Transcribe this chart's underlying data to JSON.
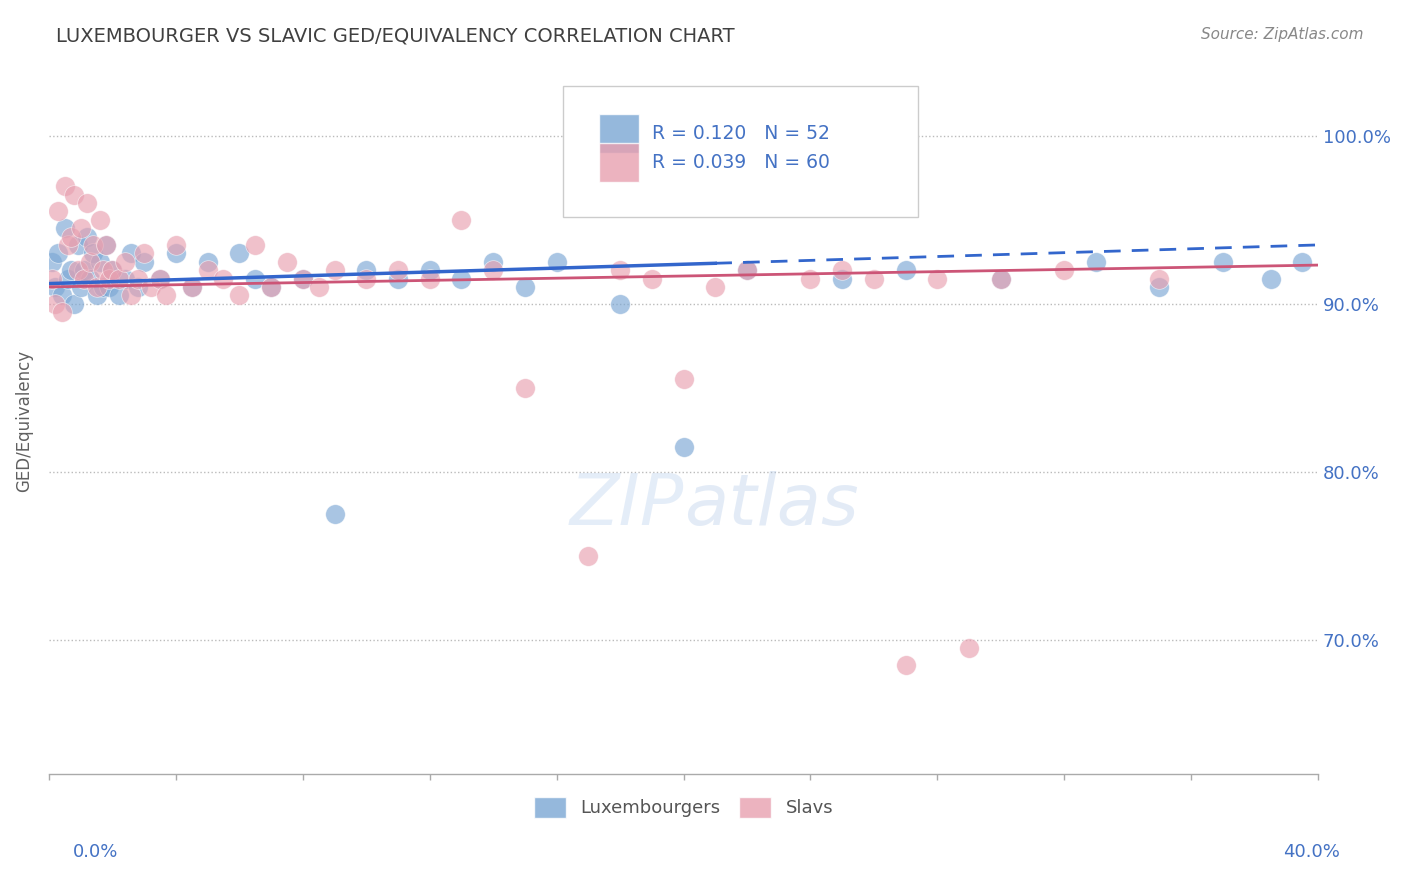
{
  "title": "LUXEMBOURGER VS SLAVIC GED/EQUIVALENCY CORRELATION CHART",
  "source": "Source: ZipAtlas.com",
  "ylabel": "GED/Equivalency",
  "xlim": [
    0.0,
    40.0
  ],
  "ylim": [
    62.0,
    104.0
  ],
  "y_ticks": [
    70.0,
    80.0,
    90.0,
    100.0
  ],
  "x_ticks": [
    0.0,
    4.0,
    8.0,
    12.0,
    16.0,
    20.0,
    24.0,
    28.0,
    32.0,
    36.0,
    40.0
  ],
  "blue_color": "#7BA7D4",
  "pink_color": "#E8A0B0",
  "blue_line_color": "#3366CC",
  "pink_line_color": "#CC5577",
  "R_blue": 0.12,
  "N_blue": 52,
  "R_pink": 0.039,
  "N_pink": 60,
  "blue_solid_end": 21.0,
  "background_color": "#ffffff",
  "grid_color": "#bbbbbb",
  "tick_label_color": "#4472c4",
  "title_color": "#404040",
  "source_color": "#888888",
  "blue_points_x": [
    0.1,
    0.2,
    0.3,
    0.4,
    0.5,
    0.6,
    0.7,
    0.8,
    0.9,
    1.0,
    1.1,
    1.2,
    1.3,
    1.4,
    1.5,
    1.6,
    1.7,
    1.8,
    1.9,
    2.0,
    2.2,
    2.4,
    2.6,
    2.8,
    3.0,
    3.5,
    4.0,
    4.5,
    5.0,
    6.0,
    6.5,
    7.0,
    8.0,
    9.0,
    10.0,
    11.0,
    12.0,
    13.0,
    14.0,
    15.0,
    16.0,
    18.0,
    20.0,
    22.0,
    25.0,
    27.0,
    30.0,
    33.0,
    35.0,
    37.0,
    38.5,
    39.5
  ],
  "blue_points_y": [
    92.5,
    91.0,
    93.0,
    90.5,
    94.5,
    91.5,
    92.0,
    90.0,
    93.5,
    91.0,
    92.0,
    94.0,
    91.5,
    93.0,
    90.5,
    92.5,
    91.0,
    93.5,
    91.0,
    92.0,
    90.5,
    91.5,
    93.0,
    91.0,
    92.5,
    91.5,
    93.0,
    91.0,
    92.5,
    93.0,
    91.5,
    91.0,
    91.5,
    77.5,
    92.0,
    91.5,
    92.0,
    91.5,
    92.5,
    91.0,
    92.5,
    90.0,
    81.5,
    92.0,
    91.5,
    92.0,
    91.5,
    92.5,
    91.0,
    92.5,
    91.5,
    92.5
  ],
  "pink_points_x": [
    0.1,
    0.2,
    0.3,
    0.4,
    0.5,
    0.6,
    0.7,
    0.8,
    0.9,
    1.0,
    1.1,
    1.2,
    1.3,
    1.4,
    1.5,
    1.6,
    1.7,
    1.8,
    1.9,
    2.0,
    2.2,
    2.4,
    2.6,
    2.8,
    3.0,
    3.2,
    3.5,
    3.7,
    4.0,
    4.5,
    5.0,
    5.5,
    6.0,
    6.5,
    7.0,
    7.5,
    8.0,
    8.5,
    9.0,
    10.0,
    11.0,
    12.0,
    13.0,
    14.0,
    15.0,
    17.0,
    18.0,
    19.0,
    20.0,
    21.0,
    22.0,
    24.0,
    25.0,
    26.0,
    27.0,
    28.0,
    29.0,
    30.0,
    32.0,
    35.0
  ],
  "pink_points_y": [
    91.5,
    90.0,
    95.5,
    89.5,
    97.0,
    93.5,
    94.0,
    96.5,
    92.0,
    94.5,
    91.5,
    96.0,
    92.5,
    93.5,
    91.0,
    95.0,
    92.0,
    93.5,
    91.5,
    92.0,
    91.5,
    92.5,
    90.5,
    91.5,
    93.0,
    91.0,
    91.5,
    90.5,
    93.5,
    91.0,
    92.0,
    91.5,
    90.5,
    93.5,
    91.0,
    92.5,
    91.5,
    91.0,
    92.0,
    91.5,
    92.0,
    91.5,
    95.0,
    92.0,
    85.0,
    75.0,
    92.0,
    91.5,
    85.5,
    91.0,
    92.0,
    91.5,
    92.0,
    91.5,
    68.5,
    91.5,
    69.5,
    91.5,
    92.0,
    91.5
  ]
}
